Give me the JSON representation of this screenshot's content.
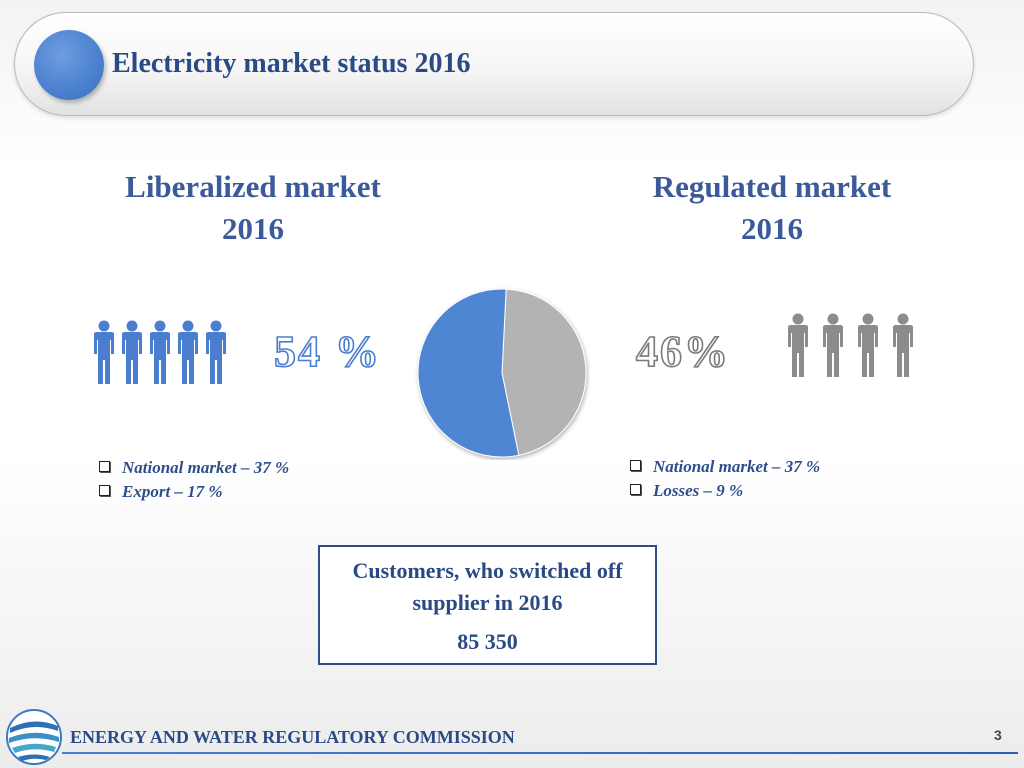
{
  "header": {
    "title": "Electricity market status 2016"
  },
  "liberalized": {
    "title_line1": "Liberalized market",
    "title_line2": "2016",
    "percent": "54 %",
    "bullets": [
      "National market – 37 %",
      "Export – 17 %"
    ]
  },
  "regulated": {
    "title_line1": "Regulated market",
    "title_line2": "2016",
    "percent": "46%",
    "bullets": [
      "National market – 37 %",
      "Losses – 9 %"
    ]
  },
  "pie": {
    "slices": [
      {
        "name": "Liberalized market",
        "value": 54,
        "color": "#4f86d4"
      },
      {
        "name": "Regulated market",
        "value": 46,
        "color": "#b3b3b3"
      }
    ]
  },
  "switch_box": {
    "text": "Customers, who switched off supplier in 2016",
    "value": "85 350"
  },
  "footer": {
    "organization": "ENERGY AND WATER REGULATORY COMMISSION",
    "page_number": "3"
  },
  "colors": {
    "accent_blue": "#4a7fd0",
    "gray": "#8c8c8c",
    "title_blue": "#2a4a86"
  },
  "icons": {
    "people_left": "person-icon",
    "people_right": "person-icon",
    "logo": "commission-logo-icon"
  }
}
